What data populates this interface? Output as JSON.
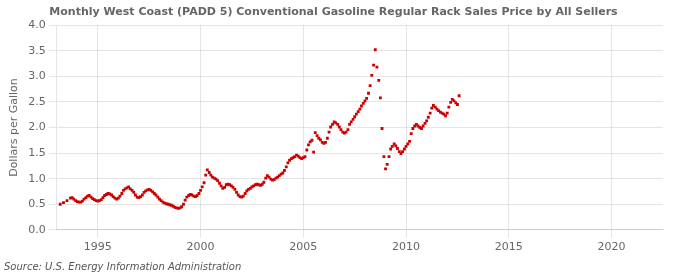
{
  "chart_data": {
    "type": "scatter",
    "title": "Monthly West Coast (PADD 5) Conventional Gasoline Regular Rack Sales Price by All Sellers",
    "ylabel": "Dollars per Gallon",
    "source": "Source: U.S. Energy Information Administration",
    "color": "#cc0000",
    "marker": "square",
    "grid": true,
    "xlim": [
      1993.0,
      2022.5
    ],
    "ylim": [
      0.0,
      4.0
    ],
    "xticks": [
      1995,
      2000,
      2005,
      2010,
      2015,
      2020
    ],
    "yticks": [
      {
        "value": 0,
        "label": "0.0"
      },
      0.5,
      {
        "value": 1,
        "label": "1.0"
      },
      1.5,
      {
        "value": 2,
        "label": "2.0"
      },
      2.5,
      {
        "value": 3,
        "label": "3.0"
      },
      3.5,
      {
        "value": 4,
        "label": "4.0"
      }
    ],
    "x": [
      1993.17,
      1993.33,
      1993.5,
      1993.67,
      1993.75,
      1993.83,
      1993.92,
      1994.0,
      1994.08,
      1994.17,
      1994.25,
      1994.33,
      1994.42,
      1994.5,
      1994.58,
      1994.67,
      1994.75,
      1994.83,
      1994.92,
      1995.0,
      1995.08,
      1995.17,
      1995.25,
      1995.33,
      1995.42,
      1995.5,
      1995.58,
      1995.67,
      1995.75,
      1995.83,
      1995.92,
      1996.0,
      1996.08,
      1996.17,
      1996.25,
      1996.33,
      1996.42,
      1996.5,
      1996.58,
      1996.67,
      1996.75,
      1996.83,
      1996.92,
      1997.0,
      1997.08,
      1997.17,
      1997.25,
      1997.33,
      1997.42,
      1997.5,
      1997.58,
      1997.67,
      1997.75,
      1997.83,
      1997.92,
      1998.0,
      1998.08,
      1998.17,
      1998.25,
      1998.33,
      1998.42,
      1998.5,
      1998.58,
      1998.67,
      1998.75,
      1998.83,
      1998.92,
      1999.0,
      1999.08,
      1999.17,
      1999.25,
      1999.33,
      1999.42,
      1999.5,
      1999.58,
      1999.67,
      1999.75,
      1999.83,
      1999.92,
      2000.0,
      2000.08,
      2000.17,
      2000.25,
      2000.33,
      2000.42,
      2000.5,
      2000.58,
      2000.67,
      2000.75,
      2000.83,
      2000.92,
      2001.0,
      2001.08,
      2001.17,
      2001.25,
      2001.33,
      2001.42,
      2001.5,
      2001.58,
      2001.67,
      2001.75,
      2001.83,
      2001.92,
      2002.0,
      2002.08,
      2002.17,
      2002.25,
      2002.33,
      2002.42,
      2002.5,
      2002.58,
      2002.67,
      2002.75,
      2002.83,
      2002.92,
      2003.0,
      2003.08,
      2003.17,
      2003.25,
      2003.33,
      2003.42,
      2003.5,
      2003.58,
      2003.67,
      2003.75,
      2003.83,
      2003.92,
      2004.0,
      2004.08,
      2004.17,
      2004.25,
      2004.33,
      2004.42,
      2004.5,
      2004.58,
      2004.67,
      2004.75,
      2004.83,
      2004.92,
      2005.0,
      2005.08,
      2005.17,
      2005.25,
      2005.33,
      2005.42,
      2005.5,
      2005.58,
      2005.67,
      2005.75,
      2005.83,
      2005.92,
      2006.0,
      2006.08,
      2006.17,
      2006.25,
      2006.33,
      2006.42,
      2006.5,
      2006.58,
      2006.67,
      2006.75,
      2006.83,
      2006.92,
      2007.0,
      2007.08,
      2007.17,
      2007.25,
      2007.33,
      2007.42,
      2007.5,
      2007.58,
      2007.67,
      2007.75,
      2007.83,
      2007.92,
      2008.0,
      2008.08,
      2008.17,
      2008.25,
      2008.33,
      2008.42,
      2008.5,
      2008.58,
      2008.67,
      2008.75,
      2008.83,
      2008.92,
      2009.0,
      2009.08,
      2009.17,
      2009.25,
      2009.33,
      2009.42,
      2009.5,
      2009.58,
      2009.67,
      2009.75,
      2009.83,
      2009.92,
      2010.0,
      2010.08,
      2010.17,
      2010.25,
      2010.33,
      2010.42,
      2010.5,
      2010.58,
      2010.67,
      2010.75,
      2010.83,
      2010.92,
      2011.0,
      2011.08,
      2011.17,
      2011.25,
      2011.33,
      2011.42,
      2011.5,
      2011.58,
      2011.67,
      2011.75,
      2011.83,
      2011.92,
      2012.0,
      2012.08,
      2012.17,
      2012.25,
      2012.33,
      2012.42,
      2012.5,
      2012.58
    ],
    "values": [
      0.5,
      0.53,
      0.57,
      0.62,
      0.63,
      0.6,
      0.57,
      0.55,
      0.54,
      0.54,
      0.56,
      0.6,
      0.63,
      0.66,
      0.67,
      0.64,
      0.61,
      0.59,
      0.57,
      0.56,
      0.57,
      0.59,
      0.63,
      0.67,
      0.69,
      0.71,
      0.7,
      0.68,
      0.65,
      0.62,
      0.6,
      0.62,
      0.66,
      0.71,
      0.77,
      0.8,
      0.82,
      0.84,
      0.8,
      0.77,
      0.73,
      0.68,
      0.64,
      0.63,
      0.65,
      0.68,
      0.73,
      0.76,
      0.78,
      0.79,
      0.77,
      0.74,
      0.71,
      0.68,
      0.64,
      0.6,
      0.57,
      0.54,
      0.52,
      0.51,
      0.5,
      0.49,
      0.48,
      0.46,
      0.44,
      0.43,
      0.42,
      0.43,
      0.45,
      0.5,
      0.58,
      0.64,
      0.67,
      0.69,
      0.68,
      0.66,
      0.65,
      0.67,
      0.71,
      0.77,
      0.84,
      0.92,
      1.07,
      1.17,
      1.12,
      1.07,
      1.03,
      1.01,
      0.99,
      0.96,
      0.91,
      0.86,
      0.81,
      0.83,
      0.88,
      0.89,
      0.88,
      0.86,
      0.83,
      0.79,
      0.73,
      0.68,
      0.65,
      0.64,
      0.66,
      0.71,
      0.76,
      0.79,
      0.81,
      0.84,
      0.86,
      0.88,
      0.89,
      0.88,
      0.87,
      0.89,
      0.93,
      1.01,
      1.06,
      1.03,
      0.99,
      0.97,
      0.98,
      1.01,
      1.03,
      1.06,
      1.09,
      1.11,
      1.16,
      1.23,
      1.31,
      1.36,
      1.39,
      1.41,
      1.43,
      1.46,
      1.44,
      1.41,
      1.39,
      1.41,
      1.43,
      1.56,
      1.66,
      1.72,
      1.75,
      1.52,
      1.9,
      1.84,
      1.79,
      1.76,
      1.71,
      1.69,
      1.71,
      1.79,
      1.91,
      2.01,
      2.06,
      2.11,
      2.09,
      2.06,
      2.01,
      1.96,
      1.91,
      1.89,
      1.91,
      1.96,
      2.06,
      2.11,
      2.16,
      2.21,
      2.26,
      2.31,
      2.36,
      2.42,
      2.47,
      2.52,
      2.57,
      2.67,
      2.82,
      3.02,
      3.22,
      3.52,
      3.18,
      2.92,
      2.58,
      1.98,
      1.43,
      1.19,
      1.28,
      1.43,
      1.58,
      1.63,
      1.68,
      1.64,
      1.59,
      1.53,
      1.49,
      1.53,
      1.58,
      1.63,
      1.68,
      1.73,
      1.88,
      1.98,
      2.03,
      2.06,
      2.03,
      2.0,
      1.98,
      2.03,
      2.08,
      2.13,
      2.2,
      2.28,
      2.38,
      2.43,
      2.4,
      2.36,
      2.33,
      2.3,
      2.28,
      2.26,
      2.23,
      2.28,
      2.4,
      2.49,
      2.55,
      2.52,
      2.48,
      2.45,
      2.62
    ]
  }
}
